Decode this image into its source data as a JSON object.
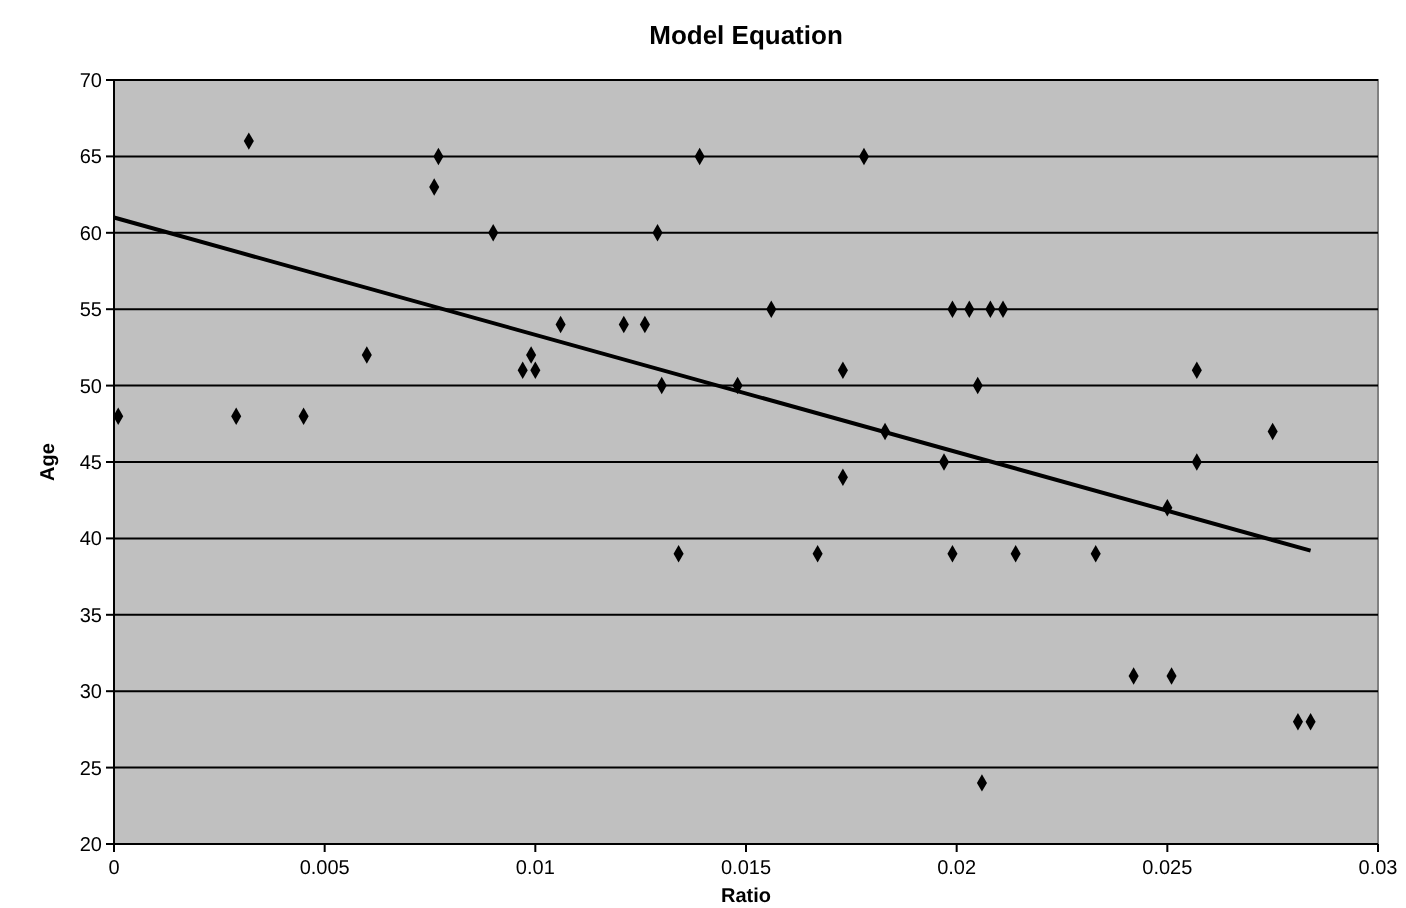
{
  "chart_data": {
    "type": "scatter",
    "title": "Model Equation",
    "xlabel": "Ratio",
    "ylabel": "Age",
    "xlim": [
      0,
      0.03
    ],
    "xticks": [
      0,
      0.005,
      0.01,
      0.015,
      0.02,
      0.025,
      0.03
    ],
    "ylim": [
      20,
      70
    ],
    "yticks": [
      20,
      25,
      30,
      35,
      40,
      45,
      50,
      55,
      60,
      65,
      70
    ],
    "grid": "y",
    "series": [
      {
        "marker": "diamond",
        "color": "#000000",
        "x": [
          0.0001,
          0.0029,
          0.0032,
          0.0045,
          0.006,
          0.0076,
          0.0077,
          0.009,
          0.0097,
          0.0099,
          0.01,
          0.0106,
          0.0121,
          0.0126,
          0.0129,
          0.013,
          0.0134,
          0.0139,
          0.0148,
          0.0156,
          0.0167,
          0.0173,
          0.0173,
          0.0178,
          0.0183,
          0.0197,
          0.0199,
          0.0199,
          0.0203,
          0.0205,
          0.0206,
          0.0208,
          0.0211,
          0.0214,
          0.0233,
          0.0242,
          0.0251,
          0.025,
          0.0257,
          0.0257,
          0.0275,
          0.0281,
          0.0284
        ],
        "values": [
          48,
          48,
          66,
          48,
          52,
          63,
          65,
          60,
          51,
          52,
          51,
          54,
          54,
          54,
          60,
          50,
          39,
          65,
          50,
          55,
          39,
          44,
          51,
          65,
          47,
          45,
          39,
          55,
          55,
          50,
          24,
          55,
          55,
          39,
          39,
          31,
          31,
          42,
          51,
          45,
          47,
          28,
          28
        ]
      },
      {
        "type": "line",
        "marker": "none",
        "color": "#000000",
        "x": [
          0,
          0.0284
        ],
        "values": [
          61,
          39.2
        ]
      }
    ]
  }
}
